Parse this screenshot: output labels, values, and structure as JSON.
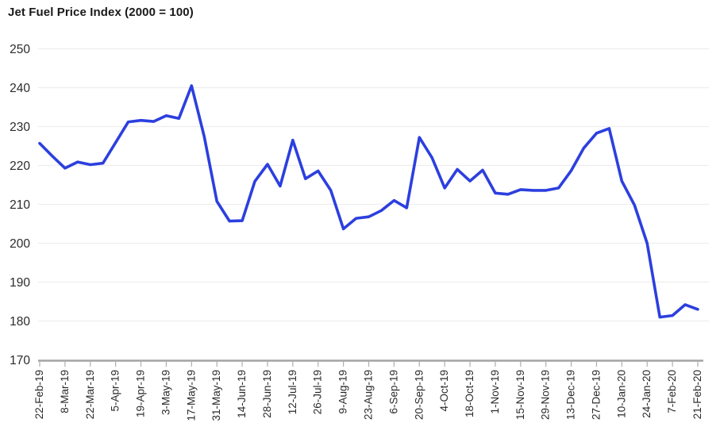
{
  "title": "Jet Fuel Price Index (2000 = 100)",
  "colors": {
    "line": "#2c3fdf",
    "grid": "#ededed",
    "axis": "#a4a4a4",
    "tick": "#aeaeae",
    "title_text": "#191919",
    "label_text": "#2b2b2b"
  },
  "chart_data": {
    "type": "line",
    "title": "Jet Fuel Price Index (2000 = 100)",
    "xlabel": "",
    "ylabel": "",
    "ylim": [
      170,
      250
    ],
    "y_ticks": [
      170,
      180,
      190,
      200,
      210,
      220,
      230,
      240,
      250
    ],
    "grid": true,
    "legend_position": "none",
    "x": [
      "22-Feb-19",
      "1-Mar-19",
      "8-Mar-19",
      "15-Mar-19",
      "22-Mar-19",
      "29-Mar-19",
      "5-Apr-19",
      "12-Apr-19",
      "19-Apr-19",
      "26-Apr-19",
      "3-May-19",
      "10-May-19",
      "17-May-19",
      "24-May-19",
      "31-May-19",
      "7-Jun-19",
      "14-Jun-19",
      "21-Jun-19",
      "28-Jun-19",
      "5-Jul-19",
      "12-Jul-19",
      "19-Jul-19",
      "26-Jul-19",
      "2-Aug-19",
      "9-Aug-19",
      "16-Aug-19",
      "23-Aug-19",
      "30-Aug-19",
      "6-Sep-19",
      "13-Sep-19",
      "20-Sep-19",
      "27-Sep-19",
      "4-Oct-19",
      "11-Oct-19",
      "18-Oct-19",
      "25-Oct-19",
      "1-Nov-19",
      "8-Nov-19",
      "15-Nov-19",
      "22-Nov-19",
      "29-Nov-19",
      "6-Dec-19",
      "13-Dec-19",
      "20-Dec-19",
      "27-Dec-19",
      "3-Jan-20",
      "10-Jan-20",
      "17-Jan-20",
      "24-Jan-20",
      "31-Jan-20",
      "7-Feb-20",
      "14-Feb-20",
      "21-Feb-20"
    ],
    "x_tick_labels": [
      "22-Feb-19",
      "8-Mar-19",
      "22-Mar-19",
      "5-Apr-19",
      "19-Apr-19",
      "3-May-19",
      "17-May-19",
      "31-May-19",
      "14-Jun-19",
      "28-Jun-19",
      "12-Jul-19",
      "26-Jul-19",
      "9-Aug-19",
      "23-Aug-19",
      "6-Sep-19",
      "20-Sep-19",
      "4-Oct-19",
      "18-Oct-19",
      "1-Nov-19",
      "15-Nov-19",
      "29-Nov-19",
      "13-Dec-19",
      "27-Dec-19",
      "10-Jan-20",
      "24-Jan-20",
      "7-Feb-20",
      "21-Feb-20"
    ],
    "series": [
      {
        "name": "Jet Fuel Price Index",
        "values": [
          225.7,
          222.4,
          219.3,
          220.9,
          220.2,
          220.6,
          225.9,
          231.2,
          231.6,
          231.3,
          232.8,
          232.1,
          240.5,
          227.4,
          210.8,
          205.7,
          205.8,
          215.9,
          220.3,
          214.7,
          226.5,
          216.6,
          218.6,
          213.6,
          203.7,
          206.4,
          206.8,
          208.4,
          211.0,
          209.1,
          227.2,
          222.0,
          214.2,
          219.0,
          216.0,
          218.8,
          212.9,
          212.6,
          213.8,
          213.6,
          213.6,
          214.2,
          218.7,
          224.5,
          228.3,
          229.5,
          216.0,
          209.8,
          200.0,
          181.0,
          181.4,
          184.2,
          183.0
        ]
      }
    ]
  }
}
